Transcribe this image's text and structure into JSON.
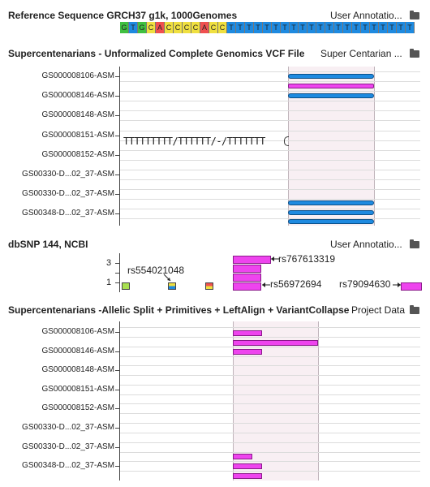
{
  "ref_track": {
    "title": "Reference Sequence GRCH37 g1k, 1000Genomes",
    "source": "User Annotatio...",
    "bases": [
      "G",
      "T",
      "G",
      "C",
      "A",
      "C",
      "C",
      "C",
      "C",
      "A",
      "C",
      "C",
      "T",
      "T",
      "T",
      "T",
      "T",
      "T",
      "T",
      "T",
      "T",
      "T",
      "T",
      "T",
      "T",
      "T",
      "T",
      "T",
      "T",
      "T",
      "T",
      "T",
      "T",
      "T"
    ],
    "base_colors": {
      "A": "#f05050",
      "C": "#f0e040",
      "G": "#40c040",
      "T": "#1e8ae0"
    }
  },
  "vcf_track": {
    "title": "Supercentenarians - Unformalized Complete Genomics VCF File",
    "source": "Super Centarian ...",
    "rows": [
      "GS000008106-ASM",
      "GS000008146-ASM",
      "GS000008148-ASM",
      "GS000008151-ASM",
      "GS000008152-ASM",
      "GS00330-D...02_37-ASM",
      "GS00330-D...02_37-ASM",
      "GS00348-D...02_37-ASM"
    ],
    "indel_text": "TTTTTTTTT/TTTTTT/-/TTTTTTT"
  },
  "dbsnp_track": {
    "title": "dbSNP 144, NCBI",
    "source": "User Annotatio...",
    "y_ticks": [
      "3",
      "1"
    ],
    "labels": [
      "rs767613319",
      "rs554021048",
      "rs56972694",
      "rs79094630"
    ]
  },
  "allelic_track": {
    "title": "Supercentenarians -Allelic Split + Primitives + LeftAlign + VariantCollapse",
    "source": "Project Data",
    "rows": [
      "GS000008106-ASM",
      "GS000008146-ASM",
      "GS000008148-ASM",
      "GS000008151-ASM",
      "GS000008152-ASM",
      "GS00330-D...02_37-ASM",
      "GS00330-D...02_37-ASM",
      "GS00348-D...02_37-ASM"
    ]
  },
  "icons": {
    "folder": "folder-icon"
  }
}
